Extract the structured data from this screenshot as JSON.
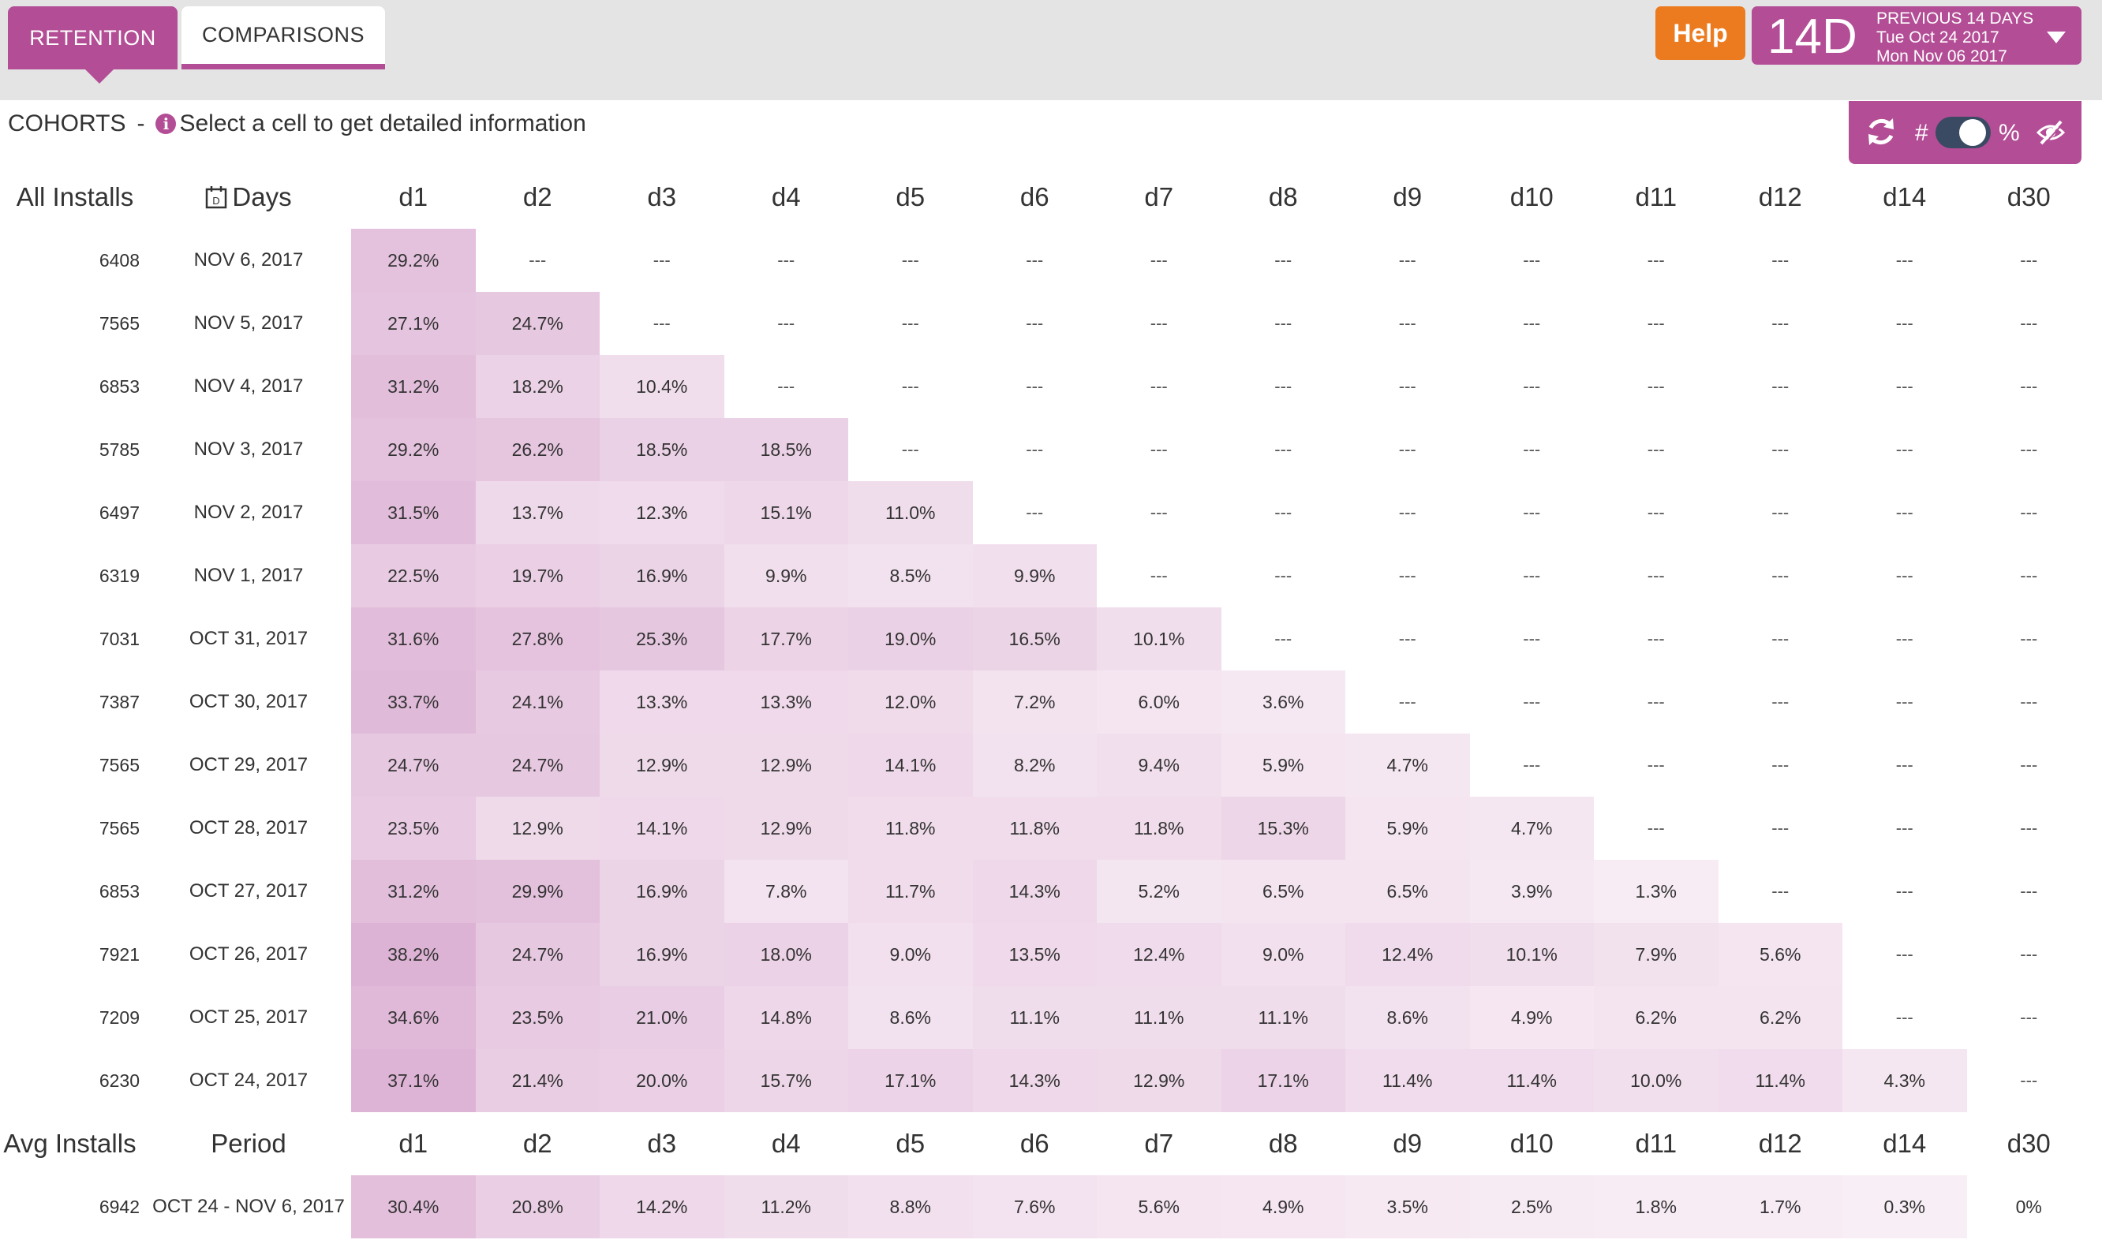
{
  "tabs": [
    {
      "label": "RETENTION",
      "active": true
    },
    {
      "label": "COMPARISONS",
      "active": false
    }
  ],
  "help_label": "Help",
  "date_range": {
    "big": "14D",
    "line1": "PREVIOUS 14 DAYS",
    "line2": "Tue Oct 24 2017",
    "line3": "Mon Nov 06 2017"
  },
  "cohorts": {
    "title": "COHORTS",
    "separator": "-",
    "hint": "Select a cell to get detailed information"
  },
  "toolbox": {
    "hash": "#",
    "percent": "%",
    "toggle_mode": "percent"
  },
  "colors": {
    "brand": "#b34d95",
    "help": "#ec7b1f",
    "toggle": "#3a4a63"
  },
  "table": {
    "col_installs": "All Installs",
    "col_days": "Days",
    "columns": [
      "d1",
      "d2",
      "d3",
      "d4",
      "d5",
      "d6",
      "d7",
      "d8",
      "d9",
      "d10",
      "d11",
      "d12",
      "d14",
      "d30"
    ],
    "empty": "---",
    "rows": [
      {
        "installs": "6408",
        "date": "NOV 6, 2017",
        "values": [
          "29.2%",
          "---",
          "---",
          "---",
          "---",
          "---",
          "---",
          "---",
          "---",
          "---",
          "---",
          "---",
          "---",
          "---"
        ]
      },
      {
        "installs": "7565",
        "date": "NOV 5, 2017",
        "values": [
          "27.1%",
          "24.7%",
          "---",
          "---",
          "---",
          "---",
          "---",
          "---",
          "---",
          "---",
          "---",
          "---",
          "---",
          "---"
        ]
      },
      {
        "installs": "6853",
        "date": "NOV 4, 2017",
        "values": [
          "31.2%",
          "18.2%",
          "10.4%",
          "---",
          "---",
          "---",
          "---",
          "---",
          "---",
          "---",
          "---",
          "---",
          "---",
          "---"
        ]
      },
      {
        "installs": "5785",
        "date": "NOV 3, 2017",
        "values": [
          "29.2%",
          "26.2%",
          "18.5%",
          "18.5%",
          "---",
          "---",
          "---",
          "---",
          "---",
          "---",
          "---",
          "---",
          "---",
          "---"
        ]
      },
      {
        "installs": "6497",
        "date": "NOV 2, 2017",
        "values": [
          "31.5%",
          "13.7%",
          "12.3%",
          "15.1%",
          "11.0%",
          "---",
          "---",
          "---",
          "---",
          "---",
          "---",
          "---",
          "---",
          "---"
        ]
      },
      {
        "installs": "6319",
        "date": "NOV 1, 2017",
        "values": [
          "22.5%",
          "19.7%",
          "16.9%",
          "9.9%",
          "8.5%",
          "9.9%",
          "---",
          "---",
          "---",
          "---",
          "---",
          "---",
          "---",
          "---"
        ]
      },
      {
        "installs": "7031",
        "date": "OCT 31, 2017",
        "values": [
          "31.6%",
          "27.8%",
          "25.3%",
          "17.7%",
          "19.0%",
          "16.5%",
          "10.1%",
          "---",
          "---",
          "---",
          "---",
          "---",
          "---",
          "---"
        ]
      },
      {
        "installs": "7387",
        "date": "OCT 30, 2017",
        "values": [
          "33.7%",
          "24.1%",
          "13.3%",
          "13.3%",
          "12.0%",
          "7.2%",
          "6.0%",
          "3.6%",
          "---",
          "---",
          "---",
          "---",
          "---",
          "---"
        ]
      },
      {
        "installs": "7565",
        "date": "OCT 29, 2017",
        "values": [
          "24.7%",
          "24.7%",
          "12.9%",
          "12.9%",
          "14.1%",
          "8.2%",
          "9.4%",
          "5.9%",
          "4.7%",
          "---",
          "---",
          "---",
          "---",
          "---"
        ]
      },
      {
        "installs": "7565",
        "date": "OCT 28, 2017",
        "values": [
          "23.5%",
          "12.9%",
          "14.1%",
          "12.9%",
          "11.8%",
          "11.8%",
          "11.8%",
          "15.3%",
          "5.9%",
          "4.7%",
          "---",
          "---",
          "---",
          "---"
        ]
      },
      {
        "installs": "6853",
        "date": "OCT 27, 2017",
        "values": [
          "31.2%",
          "29.9%",
          "16.9%",
          "7.8%",
          "11.7%",
          "14.3%",
          "5.2%",
          "6.5%",
          "6.5%",
          "3.9%",
          "1.3%",
          "---",
          "---",
          "---"
        ]
      },
      {
        "installs": "7921",
        "date": "OCT 26, 2017",
        "values": [
          "38.2%",
          "24.7%",
          "16.9%",
          "18.0%",
          "9.0%",
          "13.5%",
          "12.4%",
          "9.0%",
          "12.4%",
          "10.1%",
          "7.9%",
          "5.6%",
          "---",
          "---"
        ]
      },
      {
        "installs": "7209",
        "date": "OCT 25, 2017",
        "values": [
          "34.6%",
          "23.5%",
          "21.0%",
          "14.8%",
          "8.6%",
          "11.1%",
          "11.1%",
          "11.1%",
          "8.6%",
          "4.9%",
          "6.2%",
          "6.2%",
          "---",
          "---"
        ]
      },
      {
        "installs": "6230",
        "date": "OCT 24, 2017",
        "values": [
          "37.1%",
          "21.4%",
          "20.0%",
          "15.7%",
          "17.1%",
          "14.3%",
          "12.9%",
          "17.1%",
          "11.4%",
          "11.4%",
          "10.0%",
          "11.4%",
          "4.3%",
          "---"
        ]
      }
    ],
    "avg": {
      "col_installs": "Avg Installs",
      "col_period": "Period",
      "installs": "6942",
      "period": "OCT 24 - NOV 6, 2017",
      "values": [
        "30.4%",
        "20.8%",
        "14.2%",
        "11.2%",
        "8.8%",
        "7.6%",
        "5.6%",
        "4.9%",
        "3.5%",
        "2.5%",
        "1.8%",
        "1.7%",
        "0.3%",
        "0%"
      ]
    }
  }
}
